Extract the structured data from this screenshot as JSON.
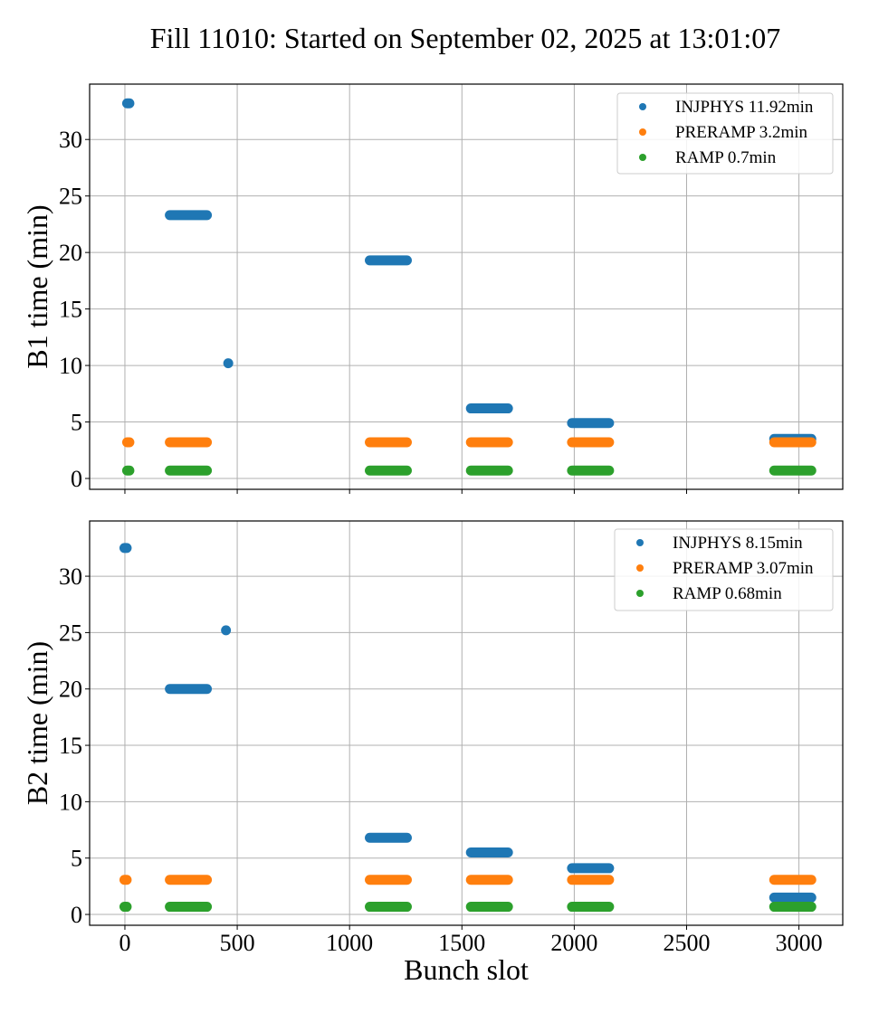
{
  "chart_data": {
    "type": "scatter",
    "title": "Fill 11010: Started on September 02, 2025 at 13:01:07",
    "shared_xlabel": "Bunch slot",
    "colors": {
      "INJPHYS": "#1f77b4",
      "PRERAMP": "#ff7f0e",
      "RAMP": "#2ca02c"
    },
    "panels": [
      {
        "id": "B1",
        "ylabel": "B1 time (min)",
        "xlim": [
          -157,
          3195
        ],
        "ylim": [
          -0.96,
          34.9
        ],
        "xticks": [
          0,
          500,
          1000,
          1500,
          2000,
          2500,
          3000
        ],
        "xtick_labels_visible": false,
        "yticks": [
          0,
          5,
          10,
          15,
          20,
          25,
          30
        ],
        "grid": true,
        "legend_position": "top-right",
        "series": [
          {
            "name": "INJPHYS",
            "legend_label": "INJPHYS 11.92min",
            "segments": [
              {
                "x_start": 10,
                "x_end": 20,
                "y": 33.2
              },
              {
                "x_start": 200,
                "x_end": 365,
                "y": 23.3
              },
              {
                "x_start": 460,
                "x_end": 460,
                "y": 10.2
              },
              {
                "x_start": 1090,
                "x_end": 1255,
                "y": 19.3
              },
              {
                "x_start": 1540,
                "x_end": 1705,
                "y": 6.2
              },
              {
                "x_start": 1990,
                "x_end": 2155,
                "y": 4.9
              },
              {
                "x_start": 2890,
                "x_end": 3055,
                "y": 3.5
              }
            ]
          },
          {
            "name": "PRERAMP",
            "legend_label": "PRERAMP 3.2min",
            "segments": [
              {
                "x_start": 10,
                "x_end": 20,
                "y": 3.2
              },
              {
                "x_start": 200,
                "x_end": 365,
                "y": 3.2
              },
              {
                "x_start": 1090,
                "x_end": 1255,
                "y": 3.2
              },
              {
                "x_start": 1540,
                "x_end": 1705,
                "y": 3.2
              },
              {
                "x_start": 1990,
                "x_end": 2155,
                "y": 3.2
              },
              {
                "x_start": 2890,
                "x_end": 3055,
                "y": 3.2
              }
            ]
          },
          {
            "name": "RAMP",
            "legend_label": "RAMP 0.7min",
            "segments": [
              {
                "x_start": 10,
                "x_end": 20,
                "y": 0.7
              },
              {
                "x_start": 200,
                "x_end": 365,
                "y": 0.7
              },
              {
                "x_start": 1090,
                "x_end": 1255,
                "y": 0.7
              },
              {
                "x_start": 1540,
                "x_end": 1705,
                "y": 0.7
              },
              {
                "x_start": 1990,
                "x_end": 2155,
                "y": 0.7
              },
              {
                "x_start": 2890,
                "x_end": 3055,
                "y": 0.7
              }
            ]
          }
        ]
      },
      {
        "id": "B2",
        "ylabel": "B2 time (min)",
        "xlim": [
          -157,
          3195
        ],
        "ylim": [
          -0.96,
          34.9
        ],
        "xticks": [
          0,
          500,
          1000,
          1500,
          2000,
          2500,
          3000
        ],
        "xtick_labels_visible": true,
        "yticks": [
          0,
          5,
          10,
          15,
          20,
          25,
          30
        ],
        "grid": true,
        "legend_position": "top-right",
        "series": [
          {
            "name": "INJPHYS",
            "legend_label": "INJPHYS 8.15min",
            "segments": [
              {
                "x_start": -2,
                "x_end": 8,
                "y": 32.5
              },
              {
                "x_start": 200,
                "x_end": 365,
                "y": 20.0
              },
              {
                "x_start": 450,
                "x_end": 450,
                "y": 25.2
              },
              {
                "x_start": 1090,
                "x_end": 1255,
                "y": 6.8
              },
              {
                "x_start": 1540,
                "x_end": 1705,
                "y": 5.5
              },
              {
                "x_start": 1990,
                "x_end": 2155,
                "y": 4.1
              },
              {
                "x_start": 2890,
                "x_end": 3055,
                "y": 1.5
              }
            ]
          },
          {
            "name": "PRERAMP",
            "legend_label": "PRERAMP 3.07min",
            "segments": [
              {
                "x_start": -2,
                "x_end": 8,
                "y": 3.07
              },
              {
                "x_start": 200,
                "x_end": 365,
                "y": 3.07
              },
              {
                "x_start": 1090,
                "x_end": 1255,
                "y": 3.07
              },
              {
                "x_start": 1540,
                "x_end": 1705,
                "y": 3.07
              },
              {
                "x_start": 1990,
                "x_end": 2155,
                "y": 3.07
              },
              {
                "x_start": 2890,
                "x_end": 3055,
                "y": 3.07
              }
            ]
          },
          {
            "name": "RAMP",
            "legend_label": "RAMP 0.68min",
            "segments": [
              {
                "x_start": -2,
                "x_end": 8,
                "y": 0.68
              },
              {
                "x_start": 200,
                "x_end": 365,
                "y": 0.68
              },
              {
                "x_start": 1090,
                "x_end": 1255,
                "y": 0.68
              },
              {
                "x_start": 1540,
                "x_end": 1705,
                "y": 0.68
              },
              {
                "x_start": 1990,
                "x_end": 2155,
                "y": 0.68
              },
              {
                "x_start": 2890,
                "x_end": 3055,
                "y": 0.68
              }
            ]
          }
        ]
      }
    ]
  }
}
